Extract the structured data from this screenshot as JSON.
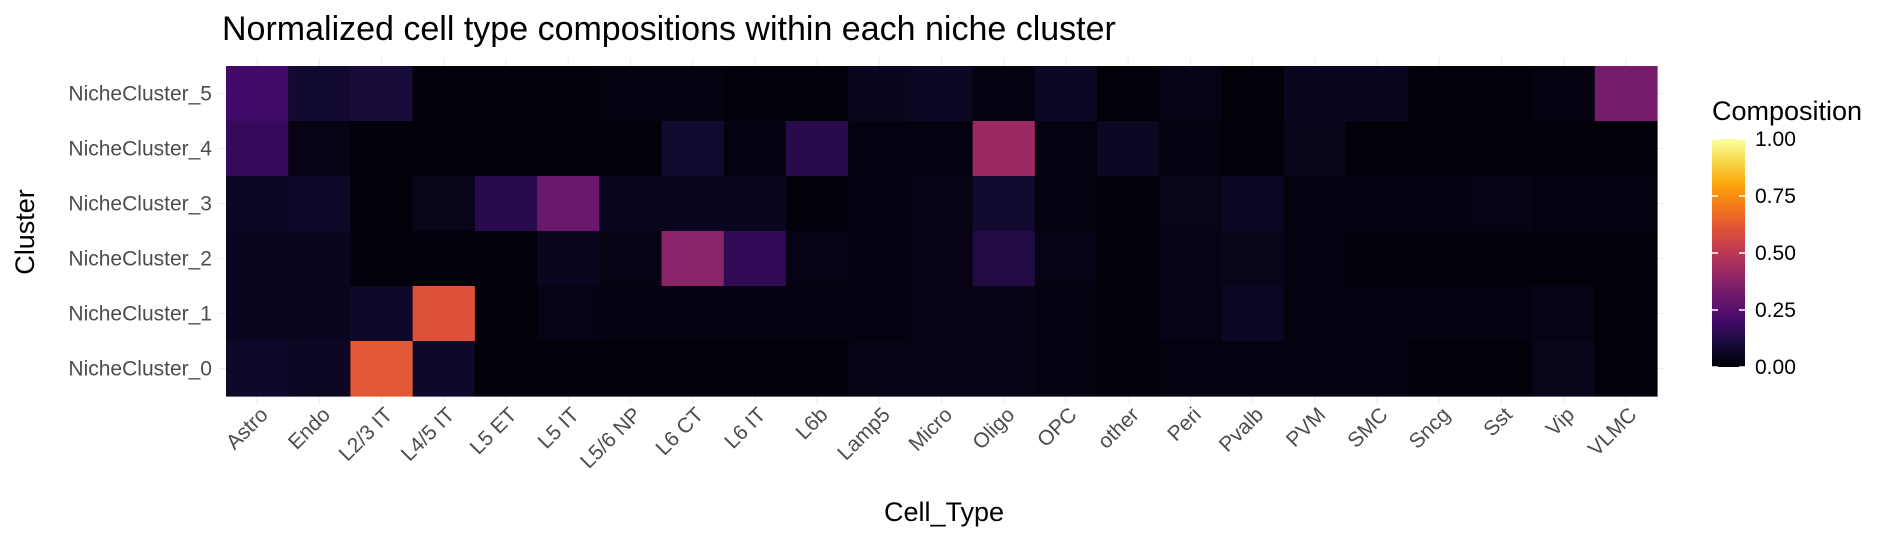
{
  "chart_data": {
    "type": "heatmap",
    "title": "Normalized cell type compositions within each niche cluster",
    "xlabel": "Cell_Type",
    "ylabel": "Cluster",
    "colormap": "inferno",
    "value_range": [
      0,
      1
    ],
    "grid": true,
    "legend_position": "right",
    "legend": {
      "title": "Composition",
      "ticks": [
        "0.00",
        "0.25",
        "0.50",
        "0.75",
        "1.00"
      ],
      "tick_values": [
        0,
        0.25,
        0.5,
        0.75,
        1.0
      ]
    },
    "x_categories": [
      "Astro",
      "Endo",
      "L2/3 IT",
      "L4/5 IT",
      "L5 ET",
      "L5 IT",
      "L5/6 NP",
      "L6 CT",
      "L6 IT",
      "L6b",
      "Lamp5",
      "Micro",
      "Oligo",
      "OPC",
      "other",
      "Peri",
      "Pvalb",
      "PVM",
      "SMC",
      "Sncg",
      "Sst",
      "Vip",
      "VLMC"
    ],
    "y_categories": [
      "NicheCluster_5",
      "NicheCluster_4",
      "NicheCluster_3",
      "NicheCluster_2",
      "NicheCluster_1",
      "NicheCluster_0"
    ],
    "values": [
      [
        0.2,
        0.08,
        0.1,
        0.01,
        0.01,
        0.01,
        0.02,
        0.02,
        0.01,
        0.01,
        0.05,
        0.06,
        0.02,
        0.06,
        0.01,
        0.03,
        0.01,
        0.05,
        0.05,
        0.01,
        0.01,
        0.02,
        0.33
      ],
      [
        0.17,
        0.03,
        0.01,
        0.01,
        0.01,
        0.01,
        0.01,
        0.08,
        0.02,
        0.14,
        0.02,
        0.02,
        0.42,
        0.02,
        0.06,
        0.02,
        0.01,
        0.04,
        0.01,
        0.01,
        0.01,
        0.01,
        0.01
      ],
      [
        0.06,
        0.07,
        0.01,
        0.04,
        0.14,
        0.3,
        0.05,
        0.05,
        0.05,
        0.01,
        0.02,
        0.03,
        0.08,
        0.02,
        0.01,
        0.04,
        0.06,
        0.02,
        0.02,
        0.02,
        0.03,
        0.02,
        0.02
      ],
      [
        0.05,
        0.05,
        0.01,
        0.01,
        0.01,
        0.05,
        0.03,
        0.38,
        0.16,
        0.03,
        0.02,
        0.03,
        0.12,
        0.03,
        0.01,
        0.03,
        0.04,
        0.02,
        0.01,
        0.01,
        0.01,
        0.01,
        0.01
      ],
      [
        0.05,
        0.05,
        0.07,
        0.6,
        0.01,
        0.03,
        0.02,
        0.02,
        0.02,
        0.02,
        0.02,
        0.03,
        0.03,
        0.02,
        0.01,
        0.03,
        0.06,
        0.02,
        0.02,
        0.02,
        0.02,
        0.03,
        0.01
      ],
      [
        0.07,
        0.06,
        0.62,
        0.07,
        0.01,
        0.01,
        0.01,
        0.01,
        0.01,
        0.01,
        0.03,
        0.03,
        0.03,
        0.02,
        0.01,
        0.02,
        0.02,
        0.02,
        0.02,
        0.01,
        0.01,
        0.04,
        0.01
      ]
    ]
  }
}
